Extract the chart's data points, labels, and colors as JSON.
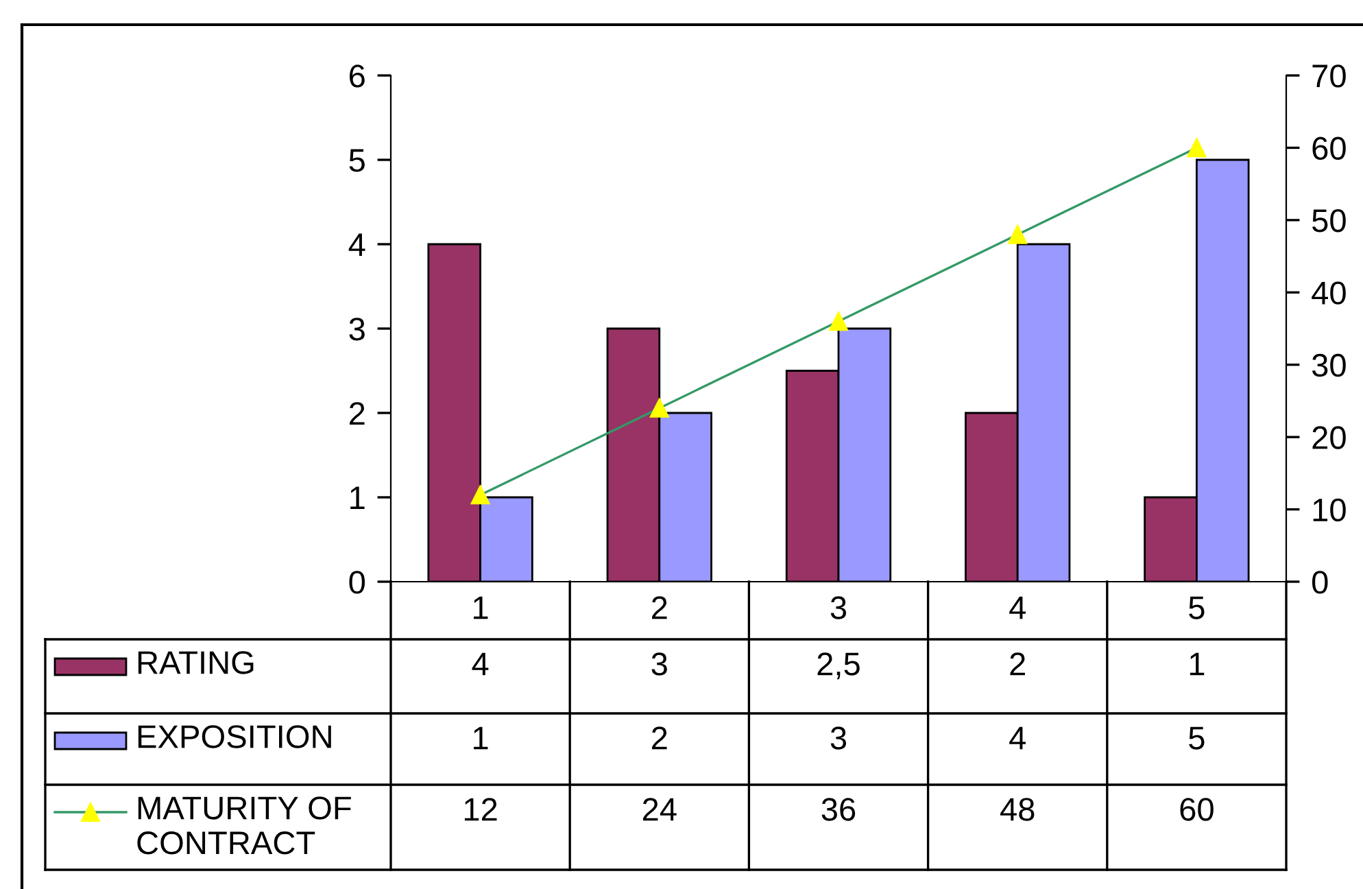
{
  "chart_data": {
    "type": "bar",
    "categories": [
      "1",
      "2",
      "3",
      "4",
      "5"
    ],
    "series": [
      {
        "name": "RATING",
        "color": "#993366",
        "values": [
          4,
          3,
          2.5,
          2,
          1
        ],
        "value_labels": [
          "4",
          "3",
          "2,5",
          "2",
          "1"
        ]
      },
      {
        "name": "EXPOSITION",
        "color": "#9999ff",
        "values": [
          1,
          2,
          3,
          4,
          5
        ],
        "value_labels": [
          "1",
          "2",
          "3",
          "4",
          "5"
        ]
      },
      {
        "name": "MATURITY OF CONTRACT",
        "type": "line",
        "axis": "y2",
        "color": "#339966",
        "marker": "triangle",
        "values": [
          12,
          24,
          36,
          48,
          60
        ],
        "value_labels": [
          "12",
          "24",
          "36",
          "48",
          "60"
        ]
      }
    ],
    "ylim": [
      0,
      6
    ],
    "yticks": [
      0,
      1,
      2,
      3,
      4,
      5,
      6
    ],
    "y2lim": [
      0,
      70
    ],
    "y2ticks": [
      0,
      10,
      20,
      30,
      40,
      50,
      60,
      70
    ],
    "grid": false,
    "legend": "bottom"
  }
}
